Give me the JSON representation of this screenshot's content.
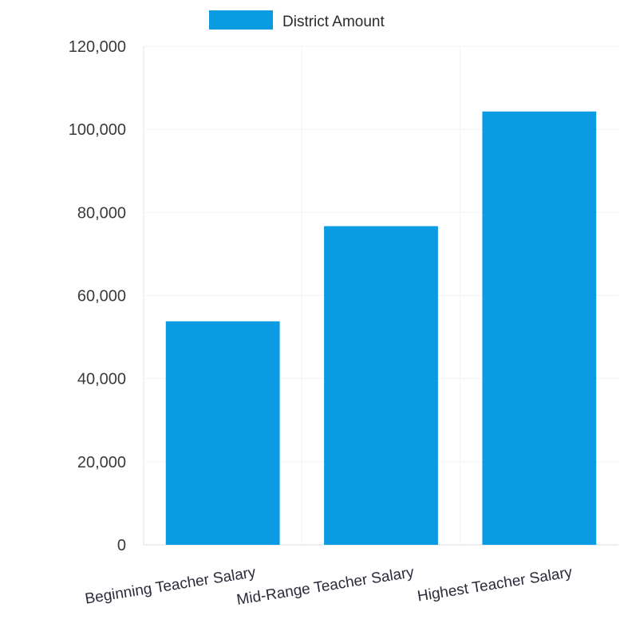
{
  "chart_data": {
    "type": "bar",
    "categories": [
      "Beginning Teacher Salary",
      "Mid-Range Teacher Salary",
      "Highest Teacher Salary"
    ],
    "series": [
      {
        "name": "District Amount",
        "values": [
          53800,
          76700,
          104300
        ],
        "color": "#0b9be3"
      }
    ],
    "ylim": [
      0,
      120000
    ],
    "yticks": [
      "0",
      "20,000",
      "40,000",
      "60,000",
      "80,000",
      "100,000",
      "120,000"
    ],
    "ytick_values": [
      0,
      20000,
      40000,
      60000,
      80000,
      100000,
      120000
    ],
    "grid": true,
    "legend_position": "top",
    "title": "",
    "xlabel": "",
    "ylabel": ""
  }
}
